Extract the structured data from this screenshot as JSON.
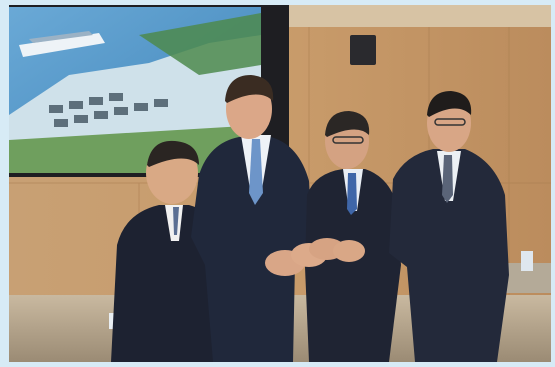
{
  "photo": {
    "subject": "four-men-joined-hands",
    "scene": "meeting-room-with-wall-screen",
    "screen_content": "harbor-aerial-rendering",
    "colors": {
      "frame": "#d7ebf6",
      "wall_wood": "#c59a6c",
      "table": "#b9a88f",
      "suit": "#1c2130"
    }
  }
}
